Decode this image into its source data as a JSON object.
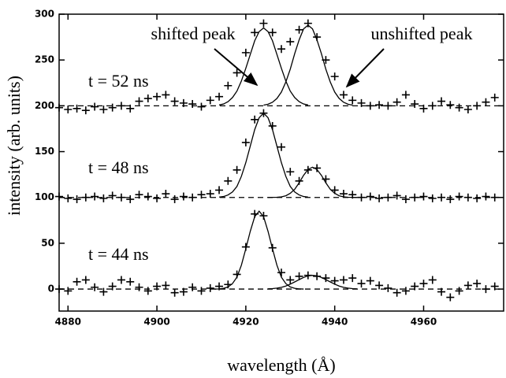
{
  "chart_data": {
    "type": "scatter",
    "xlabel": "wavelength (Å)",
    "ylabel": "intensity (arb. units)",
    "xlim": [
      4878,
      4978
    ],
    "ylim": [
      -24,
      300
    ],
    "xticks": [
      4880,
      4900,
      4920,
      4940,
      4960
    ],
    "yticks": [
      0,
      50,
      100,
      150,
      200,
      250,
      300
    ],
    "color": "#000000",
    "baselines": [
      0,
      100,
      200
    ],
    "annotations": [
      "shifted peak",
      "unshifted peak",
      "t = 52 ns",
      "t = 48 ns",
      "t = 44 ns"
    ],
    "x": [
      4878,
      4880,
      4882,
      4884,
      4886,
      4888,
      4890,
      4892,
      4894,
      4896,
      4898,
      4900,
      4902,
      4904,
      4906,
      4908,
      4910,
      4912,
      4914,
      4916,
      4918,
      4920,
      4922,
      4924,
      4926,
      4928,
      4930,
      4932,
      4934,
      4936,
      4938,
      4940,
      4942,
      4944,
      4946,
      4948,
      4950,
      4952,
      4954,
      4956,
      4958,
      4960,
      4962,
      4964,
      4966,
      4968,
      4970,
      4972,
      4974,
      4976
    ],
    "series": [
      {
        "style": "markers",
        "values": [
          0,
          -2,
          8,
          10,
          2,
          -3,
          3,
          10,
          8,
          2,
          -2,
          3,
          4,
          -4,
          -3,
          2,
          -2,
          1,
          3,
          5,
          16,
          46,
          82,
          80,
          45,
          18,
          10,
          14,
          15,
          14,
          12,
          9,
          10,
          12,
          6,
          9,
          4,
          1,
          -4,
          -2,
          3,
          6,
          10,
          -3,
          -9,
          -2,
          4,
          6,
          0,
          3
        ]
      },
      {
        "style": "markers",
        "values": [
          101,
          99,
          98,
          100,
          101,
          99,
          102,
          100,
          98,
          103,
          101,
          99,
          104,
          98,
          101,
          100,
          103,
          104,
          108,
          118,
          130,
          160,
          185,
          192,
          178,
          155,
          128,
          118,
          130,
          132,
          120,
          108,
          104,
          103,
          100,
          101,
          99,
          100,
          102,
          98,
          100,
          101,
          99,
          100,
          98,
          101,
          100,
          99,
          101,
          100
        ]
      },
      {
        "style": "markers",
        "values": [
          198,
          196,
          197,
          195,
          199,
          196,
          198,
          200,
          197,
          205,
          208,
          210,
          212,
          205,
          203,
          202,
          199,
          206,
          210,
          222,
          236,
          258,
          280,
          290,
          280,
          262,
          270,
          283,
          290,
          275,
          250,
          232,
          212,
          206,
          203,
          200,
          201,
          200,
          204,
          212,
          202,
          197,
          200,
          205,
          201,
          198,
          196,
          200,
          204,
          209
        ]
      },
      {
        "style": "line",
        "x": [
          4913,
          4914,
          4915,
          4916,
          4917,
          4918,
          4919,
          4920,
          4921,
          4922,
          4923,
          4924,
          4925,
          4926,
          4927,
          4928,
          4929,
          4930,
          4931,
          4932,
          4933
        ],
        "values": [
          0,
          0.2,
          0.8,
          2.3,
          6,
          13,
          26,
          44,
          63,
          79,
          85,
          79,
          63,
          44,
          26,
          13,
          6,
          2.3,
          0.8,
          0.2,
          0
        ]
      },
      {
        "style": "line",
        "x": [
          4925,
          4926,
          4927,
          4928,
          4929,
          4930,
          4931,
          4932,
          4933,
          4934,
          4935,
          4936,
          4937,
          4938,
          4939,
          4940,
          4941,
          4942,
          4943,
          4944,
          4945
        ],
        "values": [
          0.25,
          0.5,
          1,
          1.9,
          3.3,
          5.4,
          7.8,
          10.3,
          12.7,
          14.4,
          15,
          14.4,
          12.7,
          10.3,
          7.8,
          5.4,
          3.3,
          1.9,
          1,
          0.5,
          0.25
        ]
      },
      {
        "style": "line",
        "x": [
          4914,
          4915,
          4916,
          4917,
          4918,
          4919,
          4920,
          4921,
          4922,
          4923,
          4924,
          4925,
          4926,
          4927,
          4928,
          4929,
          4930,
          4931,
          4932,
          4933,
          4934
        ],
        "values": [
          100.4,
          101,
          102.7,
          106,
          112,
          123,
          138,
          156,
          174,
          187,
          192,
          187,
          174,
          156,
          138,
          123,
          112,
          106,
          102.7,
          101,
          100.4
        ]
      },
      {
        "style": "line",
        "x": [
          4925,
          4926,
          4927,
          4928,
          4929,
          4930,
          4931,
          4932,
          4933,
          4934,
          4935,
          4936,
          4937,
          4938,
          4939,
          4940,
          4941,
          4942,
          4943,
          4944,
          4945
        ],
        "values": [
          100,
          100.05,
          100.2,
          100.65,
          101.8,
          104.5,
          108.9,
          116,
          124.2,
          130.5,
          133,
          130.5,
          124.2,
          116,
          108.9,
          104.5,
          101.8,
          100.65,
          100.2,
          100.05,
          100
        ]
      },
      {
        "style": "line",
        "x": [
          4914,
          4915,
          4916,
          4917,
          4918,
          4919,
          4920,
          4921,
          4922,
          4923,
          4924,
          4925,
          4926,
          4927,
          4928,
          4929,
          4930,
          4931,
          4932,
          4933,
          4934
        ],
        "values": [
          200.9,
          202,
          204.5,
          209,
          216,
          227,
          241,
          256,
          271,
          281,
          285,
          281,
          271,
          256,
          241,
          227,
          216,
          209,
          204.5,
          202,
          200.9
        ]
      },
      {
        "style": "line",
        "x": [
          4924,
          4925,
          4926,
          4927,
          4928,
          4929,
          4930,
          4931,
          4932,
          4933,
          4934,
          4935,
          4936,
          4937,
          4938,
          4939,
          4940,
          4941,
          4942,
          4943,
          4944
        ],
        "values": [
          200.7,
          201.7,
          203.9,
          208,
          215,
          226,
          240,
          257,
          272,
          284,
          288,
          284,
          272,
          257,
          240,
          226,
          215,
          208,
          203.9,
          201.7,
          200.7
        ]
      }
    ]
  }
}
